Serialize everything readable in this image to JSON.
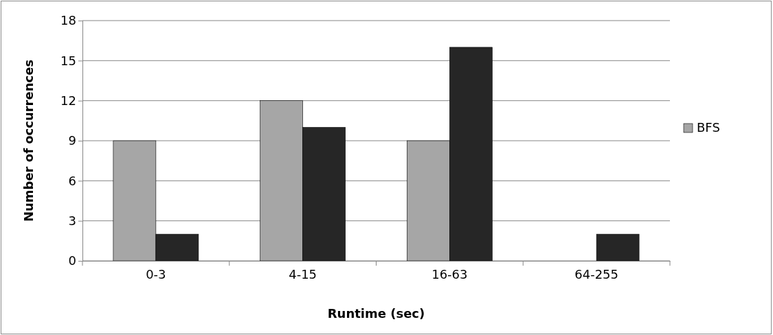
{
  "chart_data": {
    "type": "bar",
    "xlabel": "Runtime (sec)",
    "ylabel": "Number of occurrences",
    "categories": [
      "0-3",
      "4-15",
      "16-63",
      "64-255"
    ],
    "series": [
      {
        "name": "BFS",
        "color": "#a6a6a6",
        "values": [
          9,
          12,
          9,
          0
        ]
      },
      {
        "color": "#262626",
        "values": [
          2,
          10,
          16,
          2
        ]
      }
    ],
    "ylim": [
      0,
      18
    ],
    "yticks": [
      0,
      3,
      6,
      9,
      12,
      15,
      18
    ],
    "grid": "y",
    "legend": "right"
  }
}
